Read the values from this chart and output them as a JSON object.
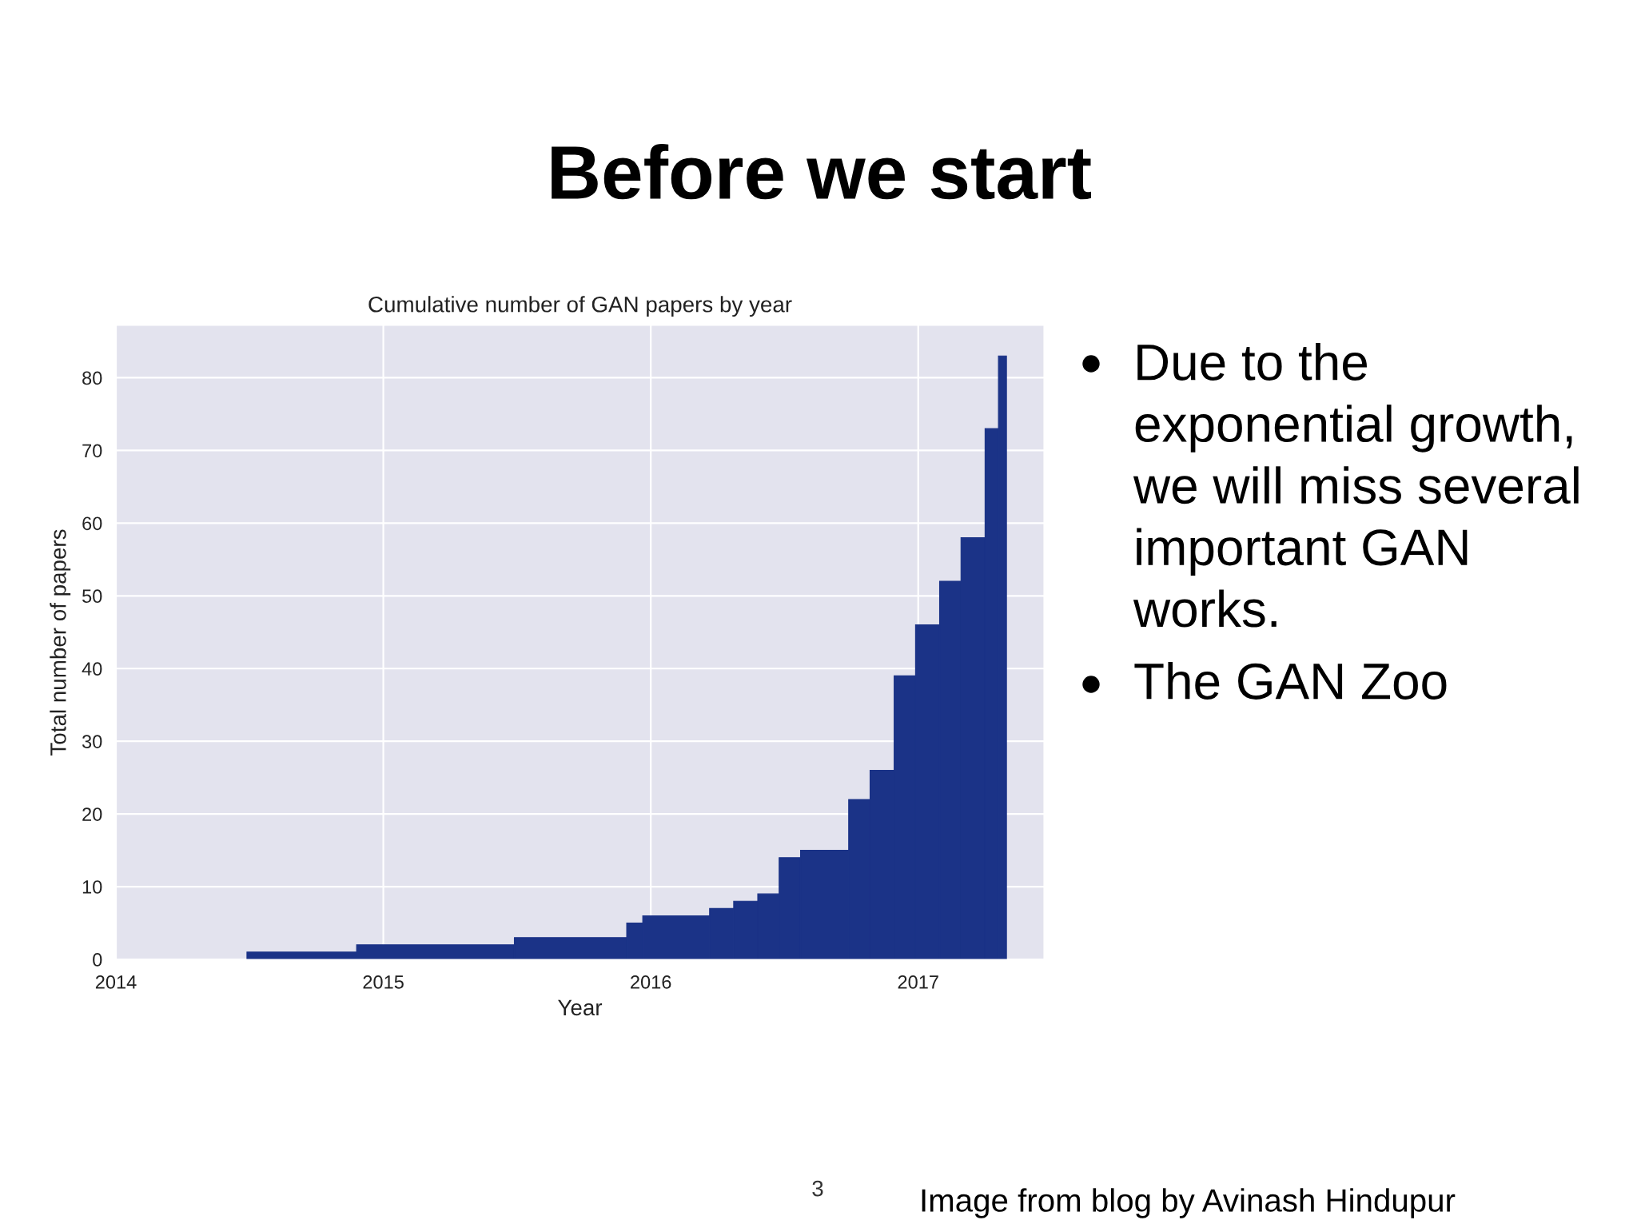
{
  "chart_data": {
    "type": "histogram",
    "title": "Cumulative number of GAN papers by year",
    "xlabel": "Year",
    "ylabel": "Total number of papers",
    "bins": [
      2014.49,
      2014.9,
      2015.49,
      2015.91,
      2015.97,
      2016.22,
      2016.31,
      2016.4,
      2016.48,
      2016.56,
      2016.74,
      2016.82,
      2016.91,
      2016.99,
      2017.08,
      2017.16,
      2017.25,
      2017.3,
      2017.33
    ],
    "values": [
      1,
      2,
      3,
      5,
      6,
      7,
      8,
      9,
      14,
      15,
      22,
      26,
      39,
      46,
      52,
      58,
      73,
      83
    ],
    "color": "#1b3387",
    "xlim": [
      2014,
      2017.47
    ],
    "ylim": [
      0,
      87.2
    ],
    "xticks": [
      2014,
      2015,
      2016,
      2017
    ],
    "yticks": [
      0,
      10,
      20,
      30,
      40,
      50,
      60,
      70,
      80
    ],
    "grid": true,
    "annotations": [
      "Before we start",
      "Due to the exponential growth, we will miss several important GAN works.",
      "The GAN Zoo",
      "3",
      "Image from blog by Avinash Hindupur"
    ]
  }
}
